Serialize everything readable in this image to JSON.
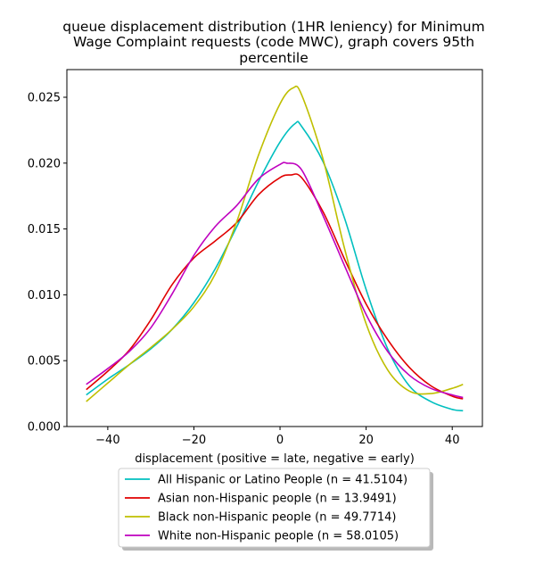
{
  "chart_data": {
    "type": "line",
    "title_lines": [
      "queue displacement distribution (1HR leniency) for Minimum",
      "Wage Complaint  requests (code MWC), graph covers 95th",
      "percentile"
    ],
    "xlabel": "displacement (positive = late, negative = early)",
    "ylabel": "",
    "xlim": [
      -49.5,
      47
    ],
    "ylim": [
      0,
      0.0271
    ],
    "xticks": [
      -40,
      -20,
      0,
      20,
      40
    ],
    "yticks": [
      0.0,
      0.005,
      0.01,
      0.015,
      0.02,
      0.025
    ],
    "xtick_labels": [
      "−40",
      "−20",
      "0",
      "20",
      "40"
    ],
    "ytick_labels": [
      "0.000",
      "0.005",
      "0.010",
      "0.015",
      "0.020",
      "0.025"
    ],
    "legend_position": "below plot",
    "grid": false,
    "series": [
      {
        "name": "All Hispanic or Latino People (n = 41.5104)",
        "color": "#00bfbf",
        "x": [
          -45,
          -40,
          -35,
          -30,
          -25,
          -20,
          -15,
          -10,
          -5,
          0,
          3.5,
          5,
          10,
          15,
          20,
          25,
          30,
          35,
          40,
          42.5
        ],
        "y": [
          0.0024,
          0.0036,
          0.0047,
          0.0059,
          0.0074,
          0.0094,
          0.012,
          0.0152,
          0.0186,
          0.0216,
          0.023,
          0.0228,
          0.0201,
          0.0158,
          0.0104,
          0.0059,
          0.0031,
          0.0019,
          0.0013,
          0.0012
        ]
      },
      {
        "name": "Asian non-Hispanic people (n = 13.9491)",
        "color": "#e00000",
        "x": [
          -45,
          -40,
          -35,
          -30,
          -25,
          -20,
          -15,
          -10,
          -5,
          0,
          2.5,
          5,
          10,
          15,
          20,
          25,
          30,
          35,
          40,
          42.5
        ],
        "y": [
          0.0028,
          0.0042,
          0.0058,
          0.0081,
          0.0108,
          0.0128,
          0.0141,
          0.0155,
          0.0176,
          0.0189,
          0.0191,
          0.0189,
          0.0163,
          0.0127,
          0.0093,
          0.0066,
          0.0045,
          0.0031,
          0.0023,
          0.0021
        ]
      },
      {
        "name": "Black non-Hispanic people (n = 49.7714)",
        "color": "#bfbf00",
        "x": [
          -45,
          -40,
          -35,
          -30,
          -25,
          -20,
          -15,
          -10,
          -5,
          0,
          3,
          5,
          10,
          15,
          20,
          25,
          30,
          35,
          40,
          42.5
        ],
        "y": [
          0.0019,
          0.0033,
          0.0047,
          0.006,
          0.0074,
          0.0091,
          0.0116,
          0.0156,
          0.0206,
          0.0245,
          0.0257,
          0.0252,
          0.0203,
          0.0135,
          0.0078,
          0.0043,
          0.0027,
          0.0025,
          0.0029,
          0.0032
        ]
      },
      {
        "name": "White non-Hispanic people (n = 58.0105)",
        "color": "#bf00bf",
        "x": [
          -45,
          -40,
          -35,
          -30,
          -25,
          -20,
          -15,
          -10,
          -5,
          0,
          1.5,
          5,
          10,
          15,
          20,
          25,
          30,
          35,
          40,
          42.5
        ],
        "y": [
          0.0032,
          0.0044,
          0.0057,
          0.0075,
          0.0101,
          0.013,
          0.0152,
          0.0168,
          0.0188,
          0.0199,
          0.02,
          0.0195,
          0.016,
          0.0122,
          0.0085,
          0.0057,
          0.0039,
          0.0029,
          0.0024,
          0.0022
        ]
      }
    ]
  }
}
